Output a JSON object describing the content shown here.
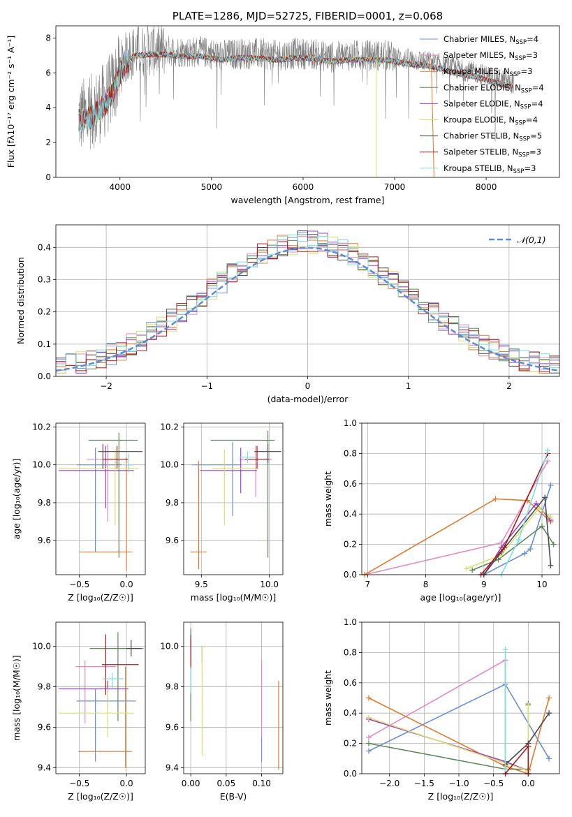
{
  "colors": {
    "chabrier_miles": "#6a8fd8",
    "salpeter_miles": "#e48ac0",
    "kroupa_miles": "#e07a2e",
    "chabrier_elodie": "#5a8a5a",
    "salpeter_elodie": "#9b40c8",
    "kroupa_elodie": "#d8e070",
    "chabrier_stelib": "#4a4a4a",
    "salpeter_stelib": "#b01818",
    "kroupa_stelib": "#7fdce0",
    "data": "#808080",
    "normal": "#5a8ad8"
  },
  "chart_data": [
    {
      "id": "spectrum",
      "type": "line",
      "title": "PLATE=1286, MJD=52725, FIBERID=0001, z=0.068",
      "xlabel": "wavelength [Angstrom, rest frame]",
      "ylabel": "Flux [fλ10⁻¹⁷ erg cm⁻² s⁻¹ A⁻¹]",
      "xlim": [
        3300,
        8800
      ],
      "ylim": [
        0,
        8.7
      ],
      "xticks": [
        4000,
        5000,
        6000,
        7000,
        8000
      ],
      "yticks": [
        0,
        2,
        4,
        6,
        8
      ],
      "legend_position": "right",
      "legend": [
        "Chabrier MILES, N_SSP=4",
        "Salpeter MILES, N_SSP=3",
        "Kroupa MILES, N_SSP=3",
        "Chabrier ELODIE, N_SSP=4",
        "Salpeter ELODIE, N_SSP=4",
        "Kroupa ELODIE, N_SSP=4",
        "Chabrier STELIB, N_SSP=5",
        "Salpeter STELIB, N_SSP=3",
        "Kroupa STELIB, N_SSP=3"
      ],
      "continuum": {
        "x": [
          3550,
          3650,
          3750,
          3850,
          3950,
          4050,
          4150,
          4300,
          4500,
          4700,
          4900,
          5100,
          5300,
          5500,
          5700,
          5900,
          6100,
          6300,
          6500,
          6700,
          6900,
          7100,
          7300,
          7500,
          7700,
          7900,
          8100,
          8300
        ],
        "y": [
          3.5,
          3.6,
          4.0,
          4.5,
          5.5,
          6.8,
          7.2,
          7.3,
          7.3,
          7.2,
          7.2,
          7.0,
          7.1,
          7.1,
          7.0,
          7.1,
          7.1,
          6.9,
          7.0,
          7.0,
          7.0,
          6.8,
          6.7,
          6.5,
          6.2,
          6.0,
          5.7,
          5.4
        ]
      }
    },
    {
      "id": "residuals",
      "type": "histogram",
      "xlabel": "(data-model)/error",
      "ylabel": "Normed distribution",
      "xlim": [
        -2.5,
        2.5
      ],
      "ylim": [
        0,
        0.47
      ],
      "xticks": [
        -2,
        -1,
        0,
        1,
        2
      ],
      "yticks": [
        0.0,
        0.1,
        0.2,
        0.3,
        0.4
      ],
      "legend": "𝒩(0,1)",
      "legend_position": "upper right",
      "bin_width": 0.1
    },
    {
      "id": "age_vs_Z",
      "type": "errorbar",
      "xlabel": "Z [log₁₀(Z/Z☉)]",
      "ylabel": "age  [log₁₀(age/yr)]",
      "xlim": [
        -0.75,
        0.2
      ],
      "ylim": [
        9.42,
        10.22
      ],
      "xticks": [
        -0.5,
        0.0
      ],
      "yticks": [
        9.6,
        9.8,
        10.0,
        10.2
      ],
      "points": [
        {
          "c": "chabrier_miles",
          "x": -0.33,
          "y": 10.0,
          "xerr": [
            0.2,
            0.28
          ],
          "yerr": [
            0.46,
            0.09
          ]
        },
        {
          "c": "salpeter_miles",
          "x": -0.2,
          "y": 10.03,
          "xerr": [
            0.22,
            0.2
          ],
          "yerr": [
            0.33,
            0.08
          ]
        },
        {
          "c": "kroupa_miles",
          "x": 0.0,
          "y": 9.54,
          "xerr": [
            0.5,
            0.06
          ],
          "yerr": [
            0.1,
            0.5
          ]
        },
        {
          "c": "chabrier_elodie",
          "x": -0.08,
          "y": 10.13,
          "xerr": [
            0.32,
            0.2
          ],
          "yerr": [
            0.62,
            0.04
          ]
        },
        {
          "c": "salpeter_elodie",
          "x": -0.22,
          "y": 9.97,
          "xerr": [
            0.5,
            0.3
          ],
          "yerr": [
            0.2,
            0.13
          ]
        },
        {
          "c": "kroupa_elodie",
          "x": -0.12,
          "y": 9.98,
          "xerr": [
            0.6,
            0.25
          ],
          "yerr": [
            0.3,
            0.1
          ]
        },
        {
          "c": "chabrier_stelib",
          "x": -0.25,
          "y": 10.07,
          "xerr": [
            0.05,
            0.42
          ],
          "yerr": [
            0.09,
            0.04
          ]
        },
        {
          "c": "salpeter_stelib",
          "x": -0.1,
          "y": 10.03,
          "xerr": [
            0.15,
            0.12
          ],
          "yerr": [
            0.05,
            0.07
          ]
        },
        {
          "c": "kroupa_stelib",
          "x": 0.02,
          "y": 10.0,
          "xerr": [
            0.05,
            0.05
          ],
          "yerr": [
            0.04,
            0.06
          ]
        }
      ]
    },
    {
      "id": "age_vs_mass",
      "type": "errorbar",
      "xlabel": "mass [log₁₀(M/M☉)]",
      "ylabel": "",
      "xlim": [
        9.37,
        10.1
      ],
      "ylim": [
        9.42,
        10.22
      ],
      "xticks": [
        9.5,
        10.0
      ],
      "yticks": [
        9.6,
        9.8,
        10.0,
        10.2
      ],
      "points": [
        {
          "c": "chabrier_miles",
          "x": 9.73,
          "y": 10.0,
          "xerr": [
            0.3,
            0.06
          ],
          "yerr": [
            0.27,
            0.12
          ]
        },
        {
          "c": "salpeter_miles",
          "x": 9.9,
          "y": 10.03,
          "xerr": [
            0.12,
            0.12
          ],
          "yerr": [
            0.2,
            0.07
          ]
        },
        {
          "c": "kroupa_miles",
          "x": 9.48,
          "y": 9.54,
          "xerr": [
            0.06,
            0.06
          ],
          "yerr": [
            0.09,
            0.48
          ]
        },
        {
          "c": "chabrier_elodie",
          "x": 9.99,
          "y": 10.13,
          "xerr": [
            0.42,
            0.05
          ],
          "yerr": [
            0.62,
            0.05
          ]
        },
        {
          "c": "salpeter_elodie",
          "x": 9.79,
          "y": 9.97,
          "xerr": [
            0.3,
            0.12
          ],
          "yerr": [
            0.12,
            0.12
          ]
        },
        {
          "c": "kroupa_elodie",
          "x": 9.67,
          "y": 9.98,
          "xerr": [
            0.09,
            0.25
          ],
          "yerr": [
            0.3,
            0.1
          ]
        },
        {
          "c": "chabrier_stelib",
          "x": 9.99,
          "y": 10.07,
          "xerr": [
            0.1,
            0.1
          ],
          "yerr": [
            0.06,
            0.04
          ]
        },
        {
          "c": "salpeter_stelib",
          "x": 9.91,
          "y": 10.03,
          "xerr": [
            0.09,
            0.09
          ],
          "yerr": [
            0.05,
            0.07
          ]
        },
        {
          "c": "kroupa_stelib",
          "x": 9.84,
          "y": 10.04,
          "xerr": [
            0.06,
            0.06
          ],
          "yerr": [
            0.03,
            0.03
          ]
        }
      ]
    },
    {
      "id": "mass_weight_vs_age",
      "type": "line",
      "xlabel": "age  [log₁₀(age/yr)]",
      "ylabel": "mass weight",
      "xlim": [
        6.9,
        10.3
      ],
      "ylim": [
        0,
        1.0
      ],
      "xticks": [
        7,
        8,
        9,
        10
      ],
      "yticks": [
        0.0,
        0.2,
        0.4,
        0.6,
        0.8,
        1.0
      ],
      "series": [
        {
          "c": "chabrier_miles",
          "x": [
            9.0,
            9.7,
            9.8,
            10.15
          ],
          "y": [
            0.0,
            0.14,
            0.17,
            0.59
          ]
        },
        {
          "c": "salpeter_miles",
          "x": [
            6.95,
            9.3,
            10.1
          ],
          "y": [
            0.0,
            0.21,
            0.75
          ]
        },
        {
          "c": "kroupa_miles",
          "x": [
            6.95,
            9.2,
            9.75,
            10.15
          ],
          "y": [
            0.0,
            0.5,
            0.49,
            0.35
          ]
        },
        {
          "c": "chabrier_elodie",
          "x": [
            8.8,
            9.25,
            10.0,
            10.2
          ],
          "y": [
            0.03,
            0.1,
            0.32,
            0.2
          ]
        },
        {
          "c": "salpeter_elodie",
          "x": [
            9.0,
            9.3,
            9.9,
            10.15
          ],
          "y": [
            0.0,
            0.18,
            0.47,
            0.36
          ]
        },
        {
          "c": "kroupa_elodie",
          "x": [
            8.7,
            9.3,
            9.95,
            10.15
          ],
          "y": [
            0.04,
            0.13,
            0.44,
            0.38
          ]
        },
        {
          "c": "chabrier_stelib",
          "x": [
            9.0,
            9.3,
            10.05,
            10.15
          ],
          "y": [
            0.0,
            0.15,
            0.51,
            0.06
          ]
        },
        {
          "c": "salpeter_stelib",
          "x": [
            8.95,
            9.35,
            10.1
          ],
          "y": [
            0.0,
            0.18,
            0.8
          ]
        },
        {
          "c": "kroupa_stelib",
          "x": [
            9.3,
            9.6,
            10.1
          ],
          "y": [
            0.0,
            0.23,
            0.82
          ]
        }
      ]
    },
    {
      "id": "mass_vs_Z",
      "type": "errorbar",
      "xlabel": "Z [log₁₀(Z/Z☉)]",
      "ylabel": "mass [log₁₀(M/M☉)]",
      "xlim": [
        -0.75,
        0.2
      ],
      "ylim": [
        9.37,
        10.12
      ],
      "xticks": [
        -0.5,
        0.0
      ],
      "yticks": [
        9.4,
        9.6,
        9.8,
        10.0
      ],
      "points": [
        {
          "c": "chabrier_miles",
          "x": -0.33,
          "y": 9.73,
          "xerr": [
            0.2,
            0.43
          ],
          "yerr": [
            0.3,
            0.06
          ]
        },
        {
          "c": "salpeter_miles",
          "x": -0.44,
          "y": 9.9,
          "xerr": [
            0.1,
            0.33
          ],
          "yerr": [
            0.28,
            0.03
          ]
        },
        {
          "c": "kroupa_miles",
          "x": -0.01,
          "y": 9.48,
          "xerr": [
            0.5,
            0.07
          ],
          "yerr": [
            0.08,
            0.42
          ]
        },
        {
          "c": "chabrier_elodie",
          "x": -0.09,
          "y": 9.99,
          "xerr": [
            0.3,
            0.27
          ],
          "yerr": [
            0.36,
            0.08
          ]
        },
        {
          "c": "salpeter_elodie",
          "x": -0.2,
          "y": 9.79,
          "xerr": [
            0.52,
            0.22
          ],
          "yerr": [
            0.1,
            0.04
          ]
        },
        {
          "c": "kroupa_elodie",
          "x": -0.2,
          "y": 9.67,
          "xerr": [
            0.52,
            0.28
          ],
          "yerr": [
            0.12,
            0.12
          ]
        },
        {
          "c": "chabrier_stelib",
          "x": 0.05,
          "y": 9.99,
          "xerr": [
            0.05,
            0.11
          ],
          "yerr": [
            0.04,
            0.04
          ]
        },
        {
          "c": "salpeter_stelib",
          "x": -0.22,
          "y": 9.91,
          "xerr": [
            0.04,
            0.35
          ],
          "yerr": [
            0.15,
            0.15
          ]
        },
        {
          "c": "kroupa_stelib",
          "x": -0.15,
          "y": 9.84,
          "xerr": [
            0.1,
            0.12
          ],
          "yerr": [
            0.05,
            0.03
          ]
        }
      ]
    },
    {
      "id": "mass_vs_ebv",
      "type": "errorbar",
      "xlabel": "E(B-V)",
      "ylabel": "",
      "xlim": [
        -0.01,
        0.13
      ],
      "ylim": [
        9.37,
        10.12
      ],
      "xticks": [
        0.0,
        0.05,
        0.1
      ],
      "yticks": [
        9.4,
        9.6,
        9.8,
        10.0
      ],
      "points": [
        {
          "c": "chabrier_miles",
          "x": 0.1,
          "y": 9.5,
          "xerr": [
            0,
            0
          ],
          "yerr": [
            0.07,
            0.07
          ]
        },
        {
          "c": "salpeter_miles",
          "x": 0.1,
          "y": 9.75,
          "xerr": [
            0,
            0
          ],
          "yerr": [
            0.2,
            0.18
          ]
        },
        {
          "c": "kroupa_miles",
          "x": 0.124,
          "y": 9.6,
          "xerr": [
            0,
            0
          ],
          "yerr": [
            0.21,
            0.23
          ]
        },
        {
          "c": "chabrier_elodie",
          "x": 0.0,
          "y": 9.85,
          "xerr": [
            0,
            0
          ],
          "yerr": [
            0.22,
            0.24
          ]
        },
        {
          "c": "salpeter_elodie",
          "x": 0.016,
          "y": 9.95,
          "xerr": [
            0,
            0
          ],
          "yerr": [
            0.03,
            0.05
          ]
        },
        {
          "c": "kroupa_elodie",
          "x": 0.016,
          "y": 9.7,
          "xerr": [
            0,
            0
          ],
          "yerr": [
            0.24,
            0.3
          ]
        },
        {
          "c": "chabrier_stelib",
          "x": 0.0,
          "y": 10.03,
          "xerr": [
            0,
            0
          ],
          "yerr": [
            0.03,
            0.03
          ]
        },
        {
          "c": "salpeter_stelib",
          "x": 0.0,
          "y": 9.97,
          "xerr": [
            0,
            0
          ],
          "yerr": [
            0.07,
            0.07
          ]
        },
        {
          "c": "kroupa_stelib",
          "x": 0.0,
          "y": 9.83,
          "xerr": [
            0,
            0
          ],
          "yerr": [
            0.06,
            0.06
          ]
        }
      ]
    },
    {
      "id": "mass_weight_vs_Z",
      "type": "line",
      "xlabel": "Z [log₁₀(Z/Z☉)]",
      "ylabel": "mass weight",
      "xlim": [
        -2.4,
        0.45
      ],
      "ylim": [
        0,
        1.0
      ],
      "xticks": [
        -2.0,
        -1.5,
        -1.0,
        -0.5,
        0.0
      ],
      "yticks": [
        0.0,
        0.2,
        0.4,
        0.6,
        0.8,
        1.0
      ],
      "series": [
        {
          "c": "chabrier_miles",
          "x": [
            -2.3,
            -0.33,
            0.3
          ],
          "y": [
            0.15,
            0.59,
            0.1
          ]
        },
        {
          "c": "salpeter_miles",
          "x": [
            -2.3,
            -0.33,
            -0.33,
            0.0
          ],
          "y": [
            0.24,
            0.75,
            0.0,
            0.0
          ]
        },
        {
          "c": "kroupa_miles",
          "x": [
            -2.3,
            -0.33,
            0.0,
            0.3
          ],
          "y": [
            0.5,
            0.05,
            0.0,
            0.5
          ]
        },
        {
          "c": "chabrier_elodie",
          "x": [
            -2.3,
            -0.33,
            0.0,
            0.0
          ],
          "y": [
            0.2,
            0.03,
            0.03,
            0.46
          ]
        },
        {
          "c": "salpeter_elodie",
          "x": [
            -2.3,
            -0.33,
            0.0
          ],
          "y": [
            0.36,
            0.08,
            0.02
          ]
        },
        {
          "c": "kroupa_elodie",
          "x": [
            -2.3,
            -0.33,
            0.0,
            0.0
          ],
          "y": [
            0.37,
            0.07,
            0.02,
            0.45
          ]
        },
        {
          "c": "chabrier_stelib",
          "x": [
            -0.33,
            0.0,
            0.3
          ],
          "y": [
            0.06,
            0.2,
            0.4
          ]
        },
        {
          "c": "salpeter_stelib",
          "x": [
            -0.33,
            0.0,
            0.0
          ],
          "y": [
            0.0,
            0.18,
            0.0
          ]
        },
        {
          "c": "kroupa_stelib",
          "x": [
            -0.33,
            -0.33
          ],
          "y": [
            0.82,
            0.03
          ]
        }
      ]
    }
  ]
}
